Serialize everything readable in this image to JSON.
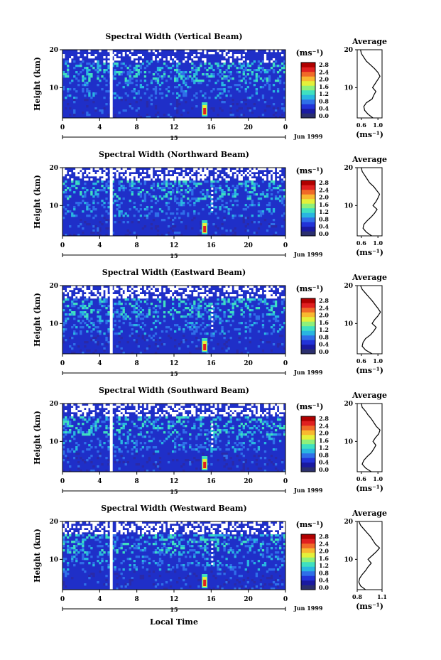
{
  "figure": {
    "x_axis_label": "Local Time",
    "time_ticks": [
      "0",
      "4",
      "8",
      "12",
      "16",
      "20",
      "0"
    ],
    "day_label": "15",
    "month_label": "Jun 1999",
    "height_label": "Height (km)",
    "height_ticks": [
      "20",
      "10"
    ],
    "unit_label": "(ms⁻¹)",
    "colorbar_ticks": [
      "2.8",
      "2.4",
      "2.0",
      "1.6",
      "1.2",
      "0.8",
      "0.4",
      "0.0"
    ],
    "colorbar_colors": [
      "#2b2f6e",
      "#1a1aa0",
      "#2233d8",
      "#2f6fe8",
      "#29b6e0",
      "#3fe0c0",
      "#8ef07a",
      "#e4f03a",
      "#f8b830",
      "#f06a28",
      "#e02020",
      "#b00000"
    ],
    "average_title": "Average"
  },
  "chart_data": [
    {
      "type": "heatmap",
      "title": "Spectral Width (Vertical Beam)",
      "xlabel": "Local Time",
      "ylabel": "Height (km)",
      "colorbar_label": "(ms⁻¹)",
      "color_range": [
        0.0,
        2.8
      ],
      "xlim_hours": [
        0,
        24
      ],
      "ylim_km": [
        2,
        20
      ],
      "profile": {
        "title": "Average",
        "xlabel": "(ms⁻¹)",
        "xlim": [
          0.5,
          1.1
        ],
        "xticks": [
          "0.6",
          "1.0"
        ],
        "height_km": [
          2,
          3,
          4,
          5,
          6,
          7,
          8,
          9,
          10,
          11,
          12,
          13,
          14,
          15,
          16,
          17,
          18,
          19,
          20
        ],
        "width_ms": [
          0.88,
          0.76,
          0.68,
          0.66,
          0.72,
          0.86,
          0.9,
          0.95,
          0.87,
          0.93,
          0.99,
          1.05,
          1.0,
          0.92,
          0.82,
          0.72,
          0.66,
          0.6,
          0.58
        ]
      }
    },
    {
      "type": "heatmap",
      "title": "Spectral Width (Northward Beam)",
      "xlabel": "Local Time",
      "ylabel": "Height (km)",
      "colorbar_label": "(ms⁻¹)",
      "color_range": [
        0.0,
        2.8
      ],
      "xlim_hours": [
        0,
        24
      ],
      "ylim_km": [
        2,
        20
      ],
      "profile": {
        "title": "Average",
        "xlabel": "(ms⁻¹)",
        "xlim": [
          0.5,
          1.1
        ],
        "xticks": [
          "0.6",
          "1.0"
        ],
        "height_km": [
          2,
          3,
          4,
          5,
          6,
          7,
          8,
          9,
          10,
          11,
          12,
          13,
          14,
          15,
          16,
          17,
          18,
          19,
          20
        ],
        "width_ms": [
          0.85,
          0.72,
          0.64,
          0.66,
          0.74,
          0.84,
          0.92,
          0.98,
          0.88,
          0.95,
          1.0,
          1.04,
          0.97,
          0.9,
          0.8,
          0.74,
          0.68,
          0.62,
          0.6
        ]
      }
    },
    {
      "type": "heatmap",
      "title": "Spectral Width (Eastward Beam)",
      "xlabel": "Local Time",
      "ylabel": "Height (km)",
      "colorbar_label": "(ms⁻¹)",
      "color_range": [
        0.0,
        2.8
      ],
      "xlim_hours": [
        0,
        24
      ],
      "ylim_km": [
        2,
        20
      ],
      "profile": {
        "title": "Average",
        "xlabel": "(ms⁻¹)",
        "xlim": [
          0.5,
          1.1
        ],
        "xticks": [
          "0.6",
          "1.0"
        ],
        "height_km": [
          2,
          3,
          4,
          5,
          6,
          7,
          8,
          9,
          10,
          11,
          12,
          13,
          14,
          15,
          16,
          17,
          18,
          19,
          20
        ],
        "width_ms": [
          0.86,
          0.7,
          0.62,
          0.64,
          0.7,
          0.82,
          0.9,
          0.96,
          0.86,
          0.92,
          1.0,
          1.06,
          1.0,
          0.93,
          0.86,
          0.78,
          0.7,
          0.62,
          0.58
        ]
      }
    },
    {
      "type": "heatmap",
      "title": "Spectral Width (Southward Beam)",
      "xlabel": "Local Time",
      "ylabel": "Height (km)",
      "colorbar_label": "(ms⁻¹)",
      "color_range": [
        0.0,
        2.8
      ],
      "xlim_hours": [
        0,
        24
      ],
      "ylim_km": [
        2,
        20
      ],
      "profile": {
        "title": "Average",
        "xlabel": "(ms⁻¹)",
        "xlim": [
          0.5,
          1.1
        ],
        "xticks": [
          "0.6",
          "1.0"
        ],
        "height_km": [
          2,
          3,
          4,
          5,
          6,
          7,
          8,
          9,
          10,
          11,
          12,
          13,
          14,
          15,
          16,
          17,
          18,
          19,
          20
        ],
        "width_ms": [
          0.84,
          0.7,
          0.62,
          0.66,
          0.74,
          0.84,
          0.9,
          0.95,
          0.88,
          0.94,
          1.02,
          1.05,
          0.96,
          0.9,
          0.84,
          0.76,
          0.7,
          0.62,
          0.6
        ]
      }
    },
    {
      "type": "heatmap",
      "title": "Spectral Width (Westward Beam)",
      "xlabel": "Local Time",
      "ylabel": "Height (km)",
      "colorbar_label": "(ms⁻¹)",
      "color_range": [
        0.0,
        2.8
      ],
      "xlim_hours": [
        0,
        24
      ],
      "ylim_km": [
        2,
        20
      ],
      "profile": {
        "title": "Average",
        "xlabel": "(ms⁻¹)",
        "xlim": [
          0.8,
          1.1
        ],
        "xticks": [
          "0.8",
          "1.1"
        ],
        "height_km": [
          2,
          3,
          4,
          5,
          6,
          7,
          8,
          9,
          10,
          11,
          12,
          13,
          14,
          15,
          16,
          17,
          18,
          19,
          20
        ],
        "width_ms": [
          0.9,
          0.84,
          0.82,
          0.83,
          0.86,
          0.9,
          0.93,
          0.97,
          0.93,
          0.98,
          1.03,
          1.07,
          1.02,
          0.99,
          0.96,
          0.92,
          0.88,
          0.84,
          0.82
        ]
      }
    }
  ]
}
